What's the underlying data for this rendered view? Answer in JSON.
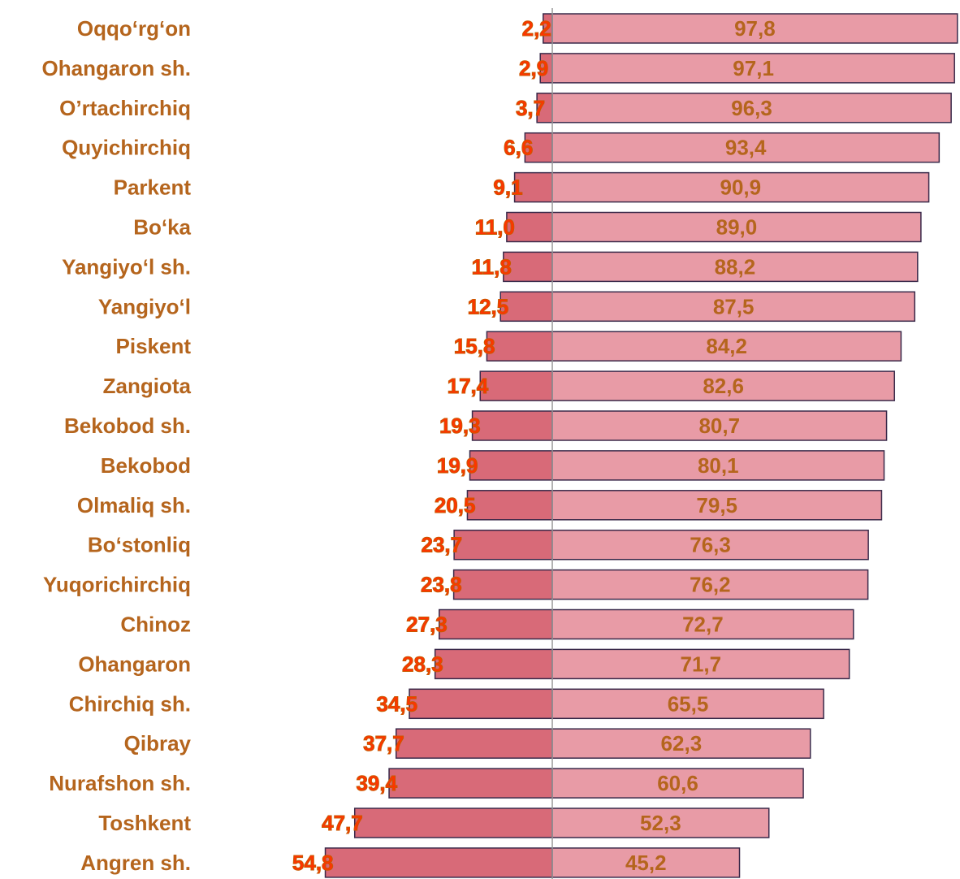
{
  "chart_data": {
    "type": "diverging-bar",
    "categories": [
      "Oqqo‘rg‘on",
      "Ohangaron sh.",
      "O’rtachirchiq",
      "Quyichirchiq",
      "Parkent",
      "Bo‘ka",
      "Yangiyo‘l sh.",
      "Yangiyo‘l",
      "Piskent",
      "Zangiota",
      "Bekobod sh.",
      "Bekobod",
      "Olmaliq sh.",
      "Bo‘stonliq",
      "Yuqorichirchiq",
      "Chinoz",
      "Ohangaron",
      "Chirchiq sh.",
      "Qibray",
      "Nurafshon sh.",
      "Toshkent",
      "Angren sh."
    ],
    "series": [
      {
        "color": "#d86a78",
        "side": "left",
        "values": [
          2.2,
          2.9,
          3.7,
          6.6,
          9.1,
          11.0,
          11.8,
          12.5,
          15.8,
          17.4,
          19.3,
          19.9,
          20.5,
          23.7,
          23.8,
          27.3,
          28.3,
          34.5,
          37.7,
          39.4,
          47.7,
          54.8
        ],
        "value_labels": [
          "2,2",
          "2,9",
          "3,7",
          "6,6",
          "9,1",
          "11,0",
          "11,8",
          "12,5",
          "15,8",
          "17,4",
          "19,3",
          "19,9",
          "20,5",
          "23,7",
          "23,8",
          "27,3",
          "28,3",
          "34,5",
          "37,7",
          "39,4",
          "47,7",
          "54,8"
        ]
      },
      {
        "color": "#e89ba6",
        "side": "right",
        "values": [
          97.8,
          97.1,
          96.3,
          93.4,
          90.9,
          89.0,
          88.2,
          87.5,
          84.2,
          82.6,
          80.7,
          80.1,
          79.5,
          76.3,
          76.2,
          72.7,
          71.7,
          65.5,
          62.3,
          60.6,
          52.3,
          45.2
        ],
        "value_labels": [
          "97,8",
          "97,1",
          "96,3",
          "93,4",
          "90,9",
          "89,0",
          "88,2",
          "87,5",
          "84,2",
          "82,6",
          "80,7",
          "80,1",
          "79,5",
          "76,3",
          "76,2",
          "72,7",
          "71,7",
          "65,5",
          "62,3",
          "60,6",
          "52,3",
          "45,2"
        ]
      }
    ]
  }
}
